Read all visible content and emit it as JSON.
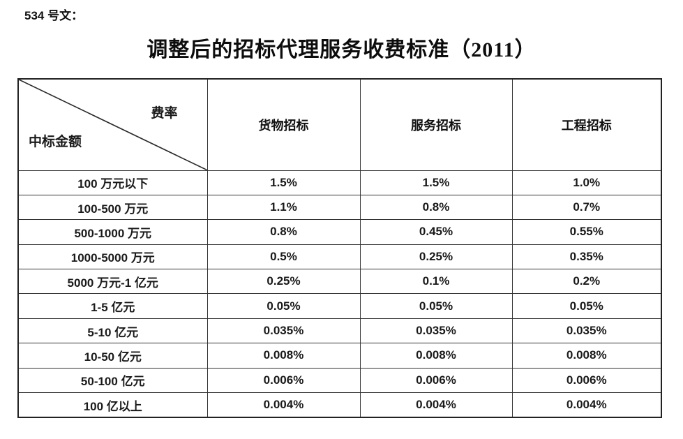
{
  "page": {
    "doc_label": "534 号文：",
    "title": "调整后的招标代理服务收费标准（2011）"
  },
  "table": {
    "corner": {
      "top_right": "费率",
      "bottom_left": "中标金额"
    },
    "columns": [
      "货物招标",
      "服务招标",
      "工程招标"
    ],
    "rows": [
      {
        "amount": "100 万元以下",
        "values": [
          "1.5%",
          "1.5%",
          "1.0%"
        ]
      },
      {
        "amount": "100-500 万元",
        "values": [
          "1.1%",
          "0.8%",
          "0.7%"
        ]
      },
      {
        "amount": "500-1000 万元",
        "values": [
          "0.8%",
          "0.45%",
          "0.55%"
        ]
      },
      {
        "amount": "1000-5000 万元",
        "values": [
          "0.5%",
          "0.25%",
          "0.35%"
        ]
      },
      {
        "amount": "5000 万元-1 亿元",
        "values": [
          "0.25%",
          "0.1%",
          "0.2%"
        ]
      },
      {
        "amount": "1-5 亿元",
        "values": [
          "0.05%",
          "0.05%",
          "0.05%"
        ]
      },
      {
        "amount": "5-10 亿元",
        "values": [
          "0.035%",
          "0.035%",
          "0.035%"
        ]
      },
      {
        "amount": "10-50 亿元",
        "values": [
          "0.008%",
          "0.008%",
          "0.008%"
        ]
      },
      {
        "amount": "50-100 亿元",
        "values": [
          "0.006%",
          "0.006%",
          "0.006%"
        ]
      },
      {
        "amount": "100 亿以上",
        "values": [
          "0.004%",
          "0.004%",
          "0.004%"
        ]
      }
    ],
    "colors": {
      "text": "#1a1a1a",
      "border_outer": "#222222",
      "border_inner": "#333333",
      "background": "#ffffff"
    }
  }
}
